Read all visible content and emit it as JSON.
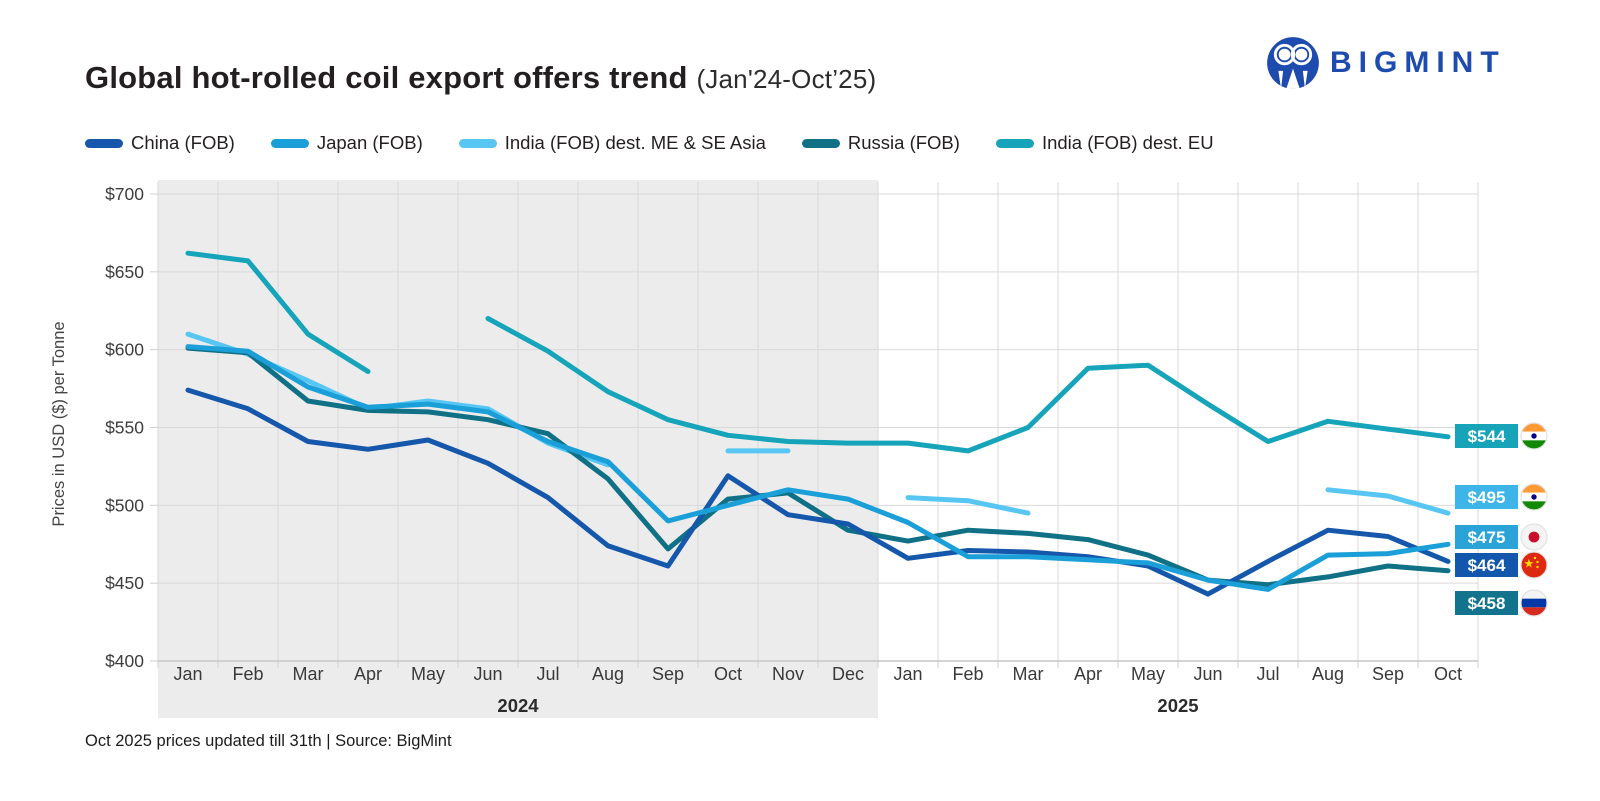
{
  "header": {
    "title": "Global hot-rolled coil export offers trend",
    "subtitle": "(Jan'24-Oct’25)",
    "brand": "BIGMINT",
    "brand_color": "#1d4cae"
  },
  "legend": {
    "items": [
      {
        "label": "China (FOB)"
      },
      {
        "label": "Japan (FOB)"
      },
      {
        "label": "India (FOB) dest. ME & SE Asia"
      },
      {
        "label": "Russia (FOB)"
      },
      {
        "label": "India (FOB) dest. EU"
      }
    ]
  },
  "y_axis": {
    "title": "Prices in USD ($) per Tonne",
    "ticks": [
      "$700",
      "$650",
      "$600",
      "$550",
      "$500",
      "$450",
      "$400"
    ]
  },
  "x_axis": {
    "months_2024": [
      "Jan",
      "Feb",
      "Mar",
      "Apr",
      "May",
      "Jun",
      "Jul",
      "Aug",
      "Sep",
      "Oct",
      "Nov",
      "Dec"
    ],
    "months_2025": [
      "Jan",
      "Feb",
      "Mar",
      "Apr",
      "May",
      "Jun",
      "Jul",
      "Aug",
      "Sep",
      "Oct"
    ],
    "years": [
      "2024",
      "2025"
    ]
  },
  "price_labels": [
    {
      "value": "$544",
      "flag": "india",
      "color": "#17a3b8"
    },
    {
      "value": "$495",
      "flag": "india",
      "color": "#3eb5e8"
    },
    {
      "value": "$475",
      "flag": "japan",
      "color": "#2aa3d8"
    },
    {
      "value": "$464",
      "flag": "china",
      "color": "#1257ac"
    },
    {
      "value": "$458",
      "flag": "russia",
      "color": "#12748c"
    }
  ],
  "footnote": {
    "text": "Oct 2025 prices updated till 31th | Source: BigMint"
  },
  "chart_data": {
    "type": "line",
    "title": "Global hot-rolled coil export offers trend (Jan'24-Oct’25)",
    "ylabel": "Prices in USD ($) per Tonne",
    "ylim": [
      400,
      700
    ],
    "y_step": 50,
    "grid": true,
    "legend_position": "top",
    "shaded_region": "Jan'24 through Dec'24",
    "categories": [
      "Jan'24",
      "Feb'24",
      "Mar'24",
      "Apr'24",
      "May'24",
      "Jun'24",
      "Jul'24",
      "Aug'24",
      "Sep'24",
      "Oct'24",
      "Nov'24",
      "Dec'24",
      "Jan'25",
      "Feb'25",
      "Mar'25",
      "Apr'25",
      "May'25",
      "Jun'25",
      "Jul'25",
      "Aug'25",
      "Sep'25",
      "Oct'25"
    ],
    "series": [
      {
        "name": "China (FOB)",
        "color": "#1457ab",
        "values": [
          574,
          562,
          541,
          536,
          542,
          527,
          505,
          474,
          461,
          519,
          494,
          488,
          466,
          471,
          470,
          467,
          461,
          443,
          464,
          484,
          480,
          464
        ]
      },
      {
        "name": "Japan (FOB)",
        "color": "#1b9fd8",
        "values": [
          602,
          599,
          576,
          563,
          565,
          560,
          541,
          528,
          490,
          500,
          510,
          504,
          489,
          467,
          467,
          465,
          463,
          452,
          446,
          468,
          469,
          475
        ]
      },
      {
        "name": "India (FOB) dest. ME & SE Asia",
        "color": "#57c6f2",
        "values": [
          610,
          597,
          580,
          562,
          567,
          562,
          540,
          526,
          null,
          535,
          535,
          null,
          505,
          503,
          495,
          null,
          null,
          null,
          null,
          510,
          506,
          495
        ]
      },
      {
        "name": "Russia (FOB)",
        "color": "#0f7086",
        "values": [
          601,
          598,
          567,
          561,
          560,
          555,
          546,
          517,
          472,
          504,
          508,
          484,
          477,
          484,
          482,
          478,
          468,
          452,
          449,
          454,
          461,
          458
        ]
      },
      {
        "name": "India (FOB) dest. EU",
        "color": "#16a4ba",
        "values": [
          662,
          657,
          610,
          586,
          null,
          620,
          599,
          573,
          555,
          545,
          541,
          540,
          540,
          535,
          550,
          588,
          590,
          565,
          541,
          554,
          549,
          544
        ]
      }
    ]
  }
}
